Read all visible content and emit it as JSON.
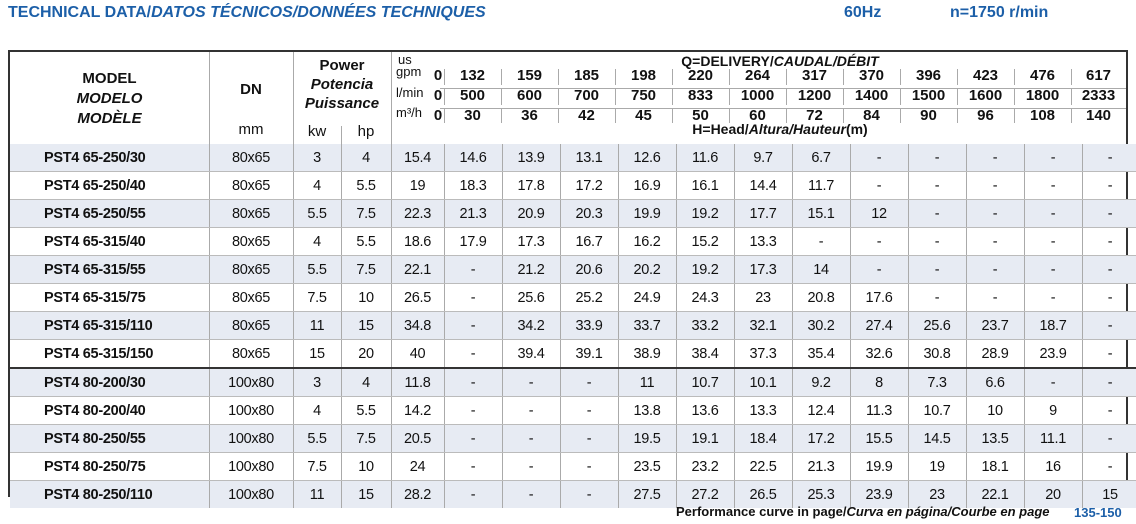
{
  "title": {
    "main": "TECHNICAL DATA/",
    "italic": "DATOS TÉCNICOS/DONNÉES TECHNIQUES",
    "freq": "60Hz",
    "speed": "n=1750 r/min"
  },
  "colors": {
    "accent": "#1c5fa8",
    "row_shade": "#e7ebf3"
  },
  "header": {
    "model": [
      "MODEL",
      "MODELO",
      "MODÈLE"
    ],
    "dn": "DN",
    "dn_unit": "mm",
    "power": [
      "Power",
      "Potencia",
      "Puissance"
    ],
    "kw": "kw",
    "hp": "hp",
    "delivery": "Q=DELIVERY/",
    "delivery_italic": "CAUDAL/DÉBIT",
    "head": "H=Head/",
    "head_italic": "Altura/Hauteur",
    "head_unit": "(m)",
    "unit_gpm_top": "us",
    "unit_gpm": "gpm",
    "unit_lmin": "l/min",
    "unit_m3h": "m³/h",
    "gpm": [
      "0",
      "132",
      "159",
      "185",
      "198",
      "220",
      "264",
      "317",
      "370",
      "396",
      "423",
      "476",
      "617"
    ],
    "lmin": [
      "0",
      "500",
      "600",
      "700",
      "750",
      "833",
      "1000",
      "1200",
      "1400",
      "1500",
      "1600",
      "1800",
      "2333"
    ],
    "m3h": [
      "0",
      "30",
      "36",
      "42",
      "45",
      "50",
      "60",
      "72",
      "84",
      "90",
      "96",
      "108",
      "140"
    ]
  },
  "rows": [
    {
      "model": "PST4 65-250/30",
      "dn": "80x65",
      "kw": "3",
      "hp": "4",
      "h": [
        "15.4",
        "14.6",
        "13.9",
        "13.1",
        "12.6",
        "11.6",
        "9.7",
        "6.7",
        "-",
        "-",
        "-",
        "-",
        "-"
      ]
    },
    {
      "model": "PST4 65-250/40",
      "dn": "80x65",
      "kw": "4",
      "hp": "5.5",
      "h": [
        "19",
        "18.3",
        "17.8",
        "17.2",
        "16.9",
        "16.1",
        "14.4",
        "11.7",
        "-",
        "-",
        "-",
        "-",
        "-"
      ]
    },
    {
      "model": "PST4 65-250/55",
      "dn": "80x65",
      "kw": "5.5",
      "hp": "7.5",
      "h": [
        "22.3",
        "21.3",
        "20.9",
        "20.3",
        "19.9",
        "19.2",
        "17.7",
        "15.1",
        "12",
        "-",
        "-",
        "-",
        "-"
      ]
    },
    {
      "model": "PST4 65-315/40",
      "dn": "80x65",
      "kw": "4",
      "hp": "5.5",
      "h": [
        "18.6",
        "17.9",
        "17.3",
        "16.7",
        "16.2",
        "15.2",
        "13.3",
        "-",
        "-",
        "-",
        "-",
        "-",
        "-"
      ]
    },
    {
      "model": "PST4 65-315/55",
      "dn": "80x65",
      "kw": "5.5",
      "hp": "7.5",
      "h": [
        "22.1",
        "-",
        "21.2",
        "20.6",
        "20.2",
        "19.2",
        "17.3",
        "14",
        "-",
        "-",
        "-",
        "-",
        "-"
      ]
    },
    {
      "model": "PST4 65-315/75",
      "dn": "80x65",
      "kw": "7.5",
      "hp": "10",
      "h": [
        "26.5",
        "-",
        "25.6",
        "25.2",
        "24.9",
        "24.3",
        "23",
        "20.8",
        "17.6",
        "-",
        "-",
        "-",
        "-"
      ]
    },
    {
      "model": "PST4 65-315/110",
      "dn": "80x65",
      "kw": "11",
      "hp": "15",
      "h": [
        "34.8",
        "-",
        "34.2",
        "33.9",
        "33.7",
        "33.2",
        "32.1",
        "30.2",
        "27.4",
        "25.6",
        "23.7",
        "18.7",
        "-"
      ]
    },
    {
      "model": "PST4 65-315/150",
      "dn": "80x65",
      "kw": "15",
      "hp": "20",
      "h": [
        "40",
        "-",
        "39.4",
        "39.1",
        "38.9",
        "38.4",
        "37.3",
        "35.4",
        "32.6",
        "30.8",
        "28.9",
        "23.9",
        "-"
      ]
    },
    {
      "model": "PST4 80-200/30",
      "dn": "100x80",
      "kw": "3",
      "hp": "4",
      "h": [
        "11.8",
        "-",
        "-",
        "-",
        "11",
        "10.7",
        "10.1",
        "9.2",
        "8",
        "7.3",
        "6.6",
        "-",
        "-"
      ]
    },
    {
      "model": "PST4 80-200/40",
      "dn": "100x80",
      "kw": "4",
      "hp": "5.5",
      "h": [
        "14.2",
        "-",
        "-",
        "-",
        "13.8",
        "13.6",
        "13.3",
        "12.4",
        "11.3",
        "10.7",
        "10",
        "9",
        "-"
      ]
    },
    {
      "model": "PST4 80-250/55",
      "dn": "100x80",
      "kw": "5.5",
      "hp": "7.5",
      "h": [
        "20.5",
        "-",
        "-",
        "-",
        "19.5",
        "19.1",
        "18.4",
        "17.2",
        "15.5",
        "14.5",
        "13.5",
        "11.1",
        "-"
      ]
    },
    {
      "model": "PST4 80-250/75",
      "dn": "100x80",
      "kw": "7.5",
      "hp": "10",
      "h": [
        "24",
        "-",
        "-",
        "-",
        "23.5",
        "23.2",
        "22.5",
        "21.3",
        "19.9",
        "19",
        "18.1",
        "16",
        "-"
      ]
    },
    {
      "model": "PST4 80-250/110",
      "dn": "100x80",
      "kw": "11",
      "hp": "15",
      "h": [
        "28.2",
        "-",
        "-",
        "-",
        "27.5",
        "27.2",
        "26.5",
        "25.3",
        "23.9",
        "23",
        "22.1",
        "20",
        "15"
      ]
    }
  ],
  "footer": {
    "text": "Performance curve in page/",
    "italic": "Curva en página/Courbe en page",
    "pages": "135-150"
  }
}
